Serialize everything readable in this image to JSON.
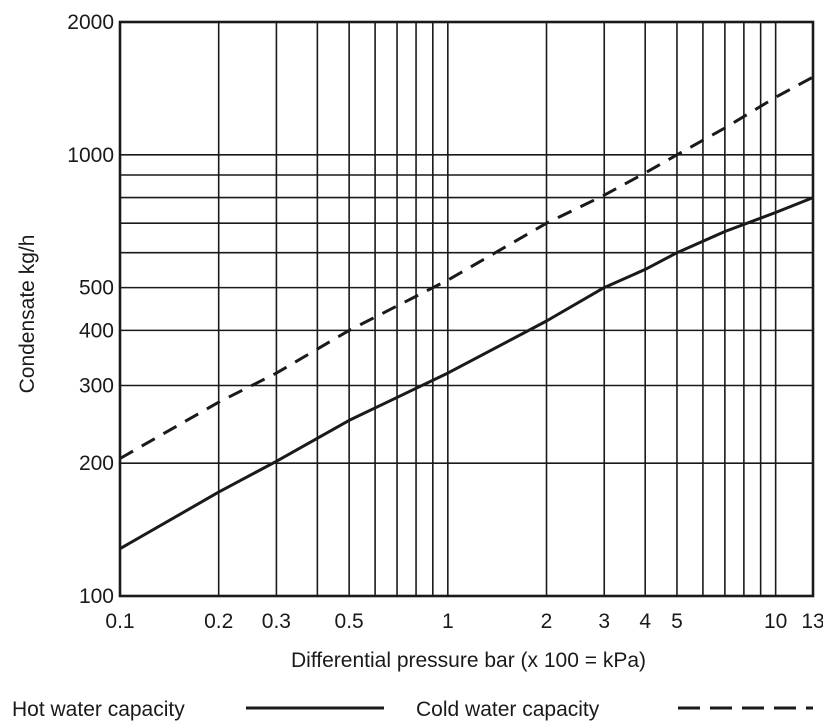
{
  "chart_data": {
    "type": "line",
    "title": "",
    "xlabel": "Differential pressure bar (x 100 = kPa)",
    "ylabel": "Condensate kg/h",
    "x_scale": "log",
    "y_scale": "log",
    "xlim": [
      0.1,
      13
    ],
    "ylim": [
      100,
      2000
    ],
    "grid": true,
    "x_ticks": [
      {
        "value": 0.1,
        "label": "0.1"
      },
      {
        "value": 0.2,
        "label": "0.2"
      },
      {
        "value": 0.3,
        "label": "0.3"
      },
      {
        "value": 0.5,
        "label": "0.5"
      },
      {
        "value": 1,
        "label": "1"
      },
      {
        "value": 2,
        "label": "2"
      },
      {
        "value": 3,
        "label": "3"
      },
      {
        "value": 4,
        "label": "4"
      },
      {
        "value": 5,
        "label": "5"
      },
      {
        "value": 10,
        "label": "10"
      },
      {
        "value": 13,
        "label": "13"
      }
    ],
    "x_grid": [
      0.2,
      0.3,
      0.4,
      0.5,
      0.6,
      0.7,
      0.8,
      0.9,
      1,
      2,
      3,
      4,
      5,
      6,
      7,
      8,
      9,
      10
    ],
    "y_ticks": [
      {
        "value": 100,
        "label": "100"
      },
      {
        "value": 200,
        "label": "200"
      },
      {
        "value": 300,
        "label": "300"
      },
      {
        "value": 400,
        "label": "400"
      },
      {
        "value": 500,
        "label": "500"
      },
      {
        "value": 1000,
        "label": "1000"
      },
      {
        "value": 2000,
        "label": "2000"
      }
    ],
    "y_grid": [
      200,
      300,
      400,
      500,
      600,
      700,
      800,
      900,
      1000
    ],
    "legend_position": "bottom",
    "series": [
      {
        "name": "Hot water capacity",
        "style": "solid",
        "color": "#1a1a1a",
        "x": [
          0.1,
          0.2,
          0.3,
          0.5,
          1,
          2,
          3,
          4,
          5,
          7,
          10,
          13
        ],
        "y": [
          128,
          172,
          202,
          250,
          320,
          420,
          500,
          550,
          600,
          670,
          740,
          800
        ]
      },
      {
        "name": "Cold water capacity",
        "style": "dashed",
        "color": "#1a1a1a",
        "x": [
          0.1,
          0.2,
          0.3,
          0.5,
          1,
          2,
          3,
          4,
          5,
          7,
          10,
          13
        ],
        "y": [
          205,
          275,
          320,
          400,
          520,
          700,
          810,
          910,
          1000,
          1150,
          1350,
          1500
        ]
      }
    ]
  }
}
